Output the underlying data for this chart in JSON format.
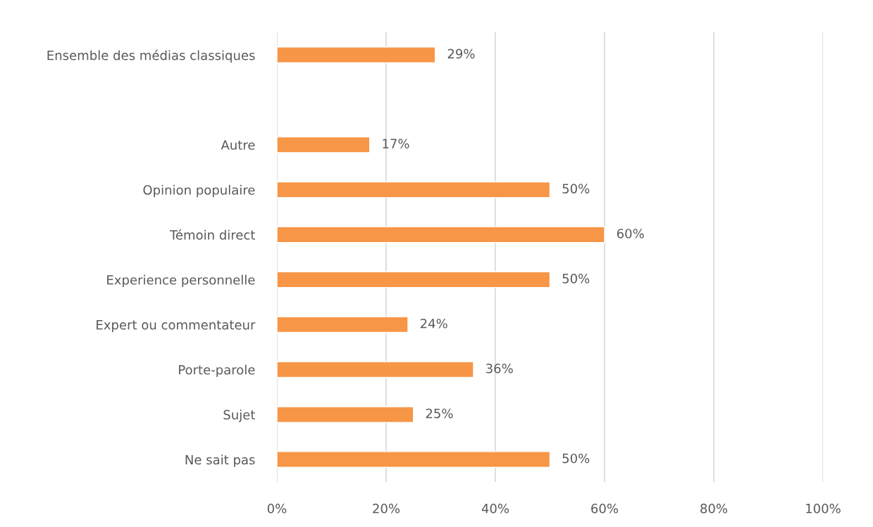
{
  "chart_data": {
    "type": "bar",
    "orientation": "horizontal",
    "categories": [
      "Ensemble des médias classiques",
      null,
      "Autre",
      "Opinion populaire",
      "Témoin direct",
      "Experience personnelle",
      "Expert ou commentateur",
      "Porte-parole",
      "Sujet",
      "Ne sait pas"
    ],
    "values": [
      29,
      null,
      17,
      50,
      60,
      50,
      24,
      36,
      25,
      50
    ],
    "value_labels": [
      "29%",
      null,
      "17%",
      "50%",
      "60%",
      "50%",
      "24%",
      "36%",
      "25%",
      "50%"
    ],
    "color": "#f79646",
    "xlim": [
      0,
      100
    ],
    "xticks": [
      {
        "value": 0,
        "label": "0%"
      },
      {
        "value": 20,
        "label": "20%"
      },
      {
        "value": 40,
        "label": "40%"
      },
      {
        "value": 60,
        "label": "60%"
      },
      {
        "value": 80,
        "label": "80%"
      },
      {
        "value": 100,
        "label": "100%"
      }
    ],
    "grid": "x"
  }
}
